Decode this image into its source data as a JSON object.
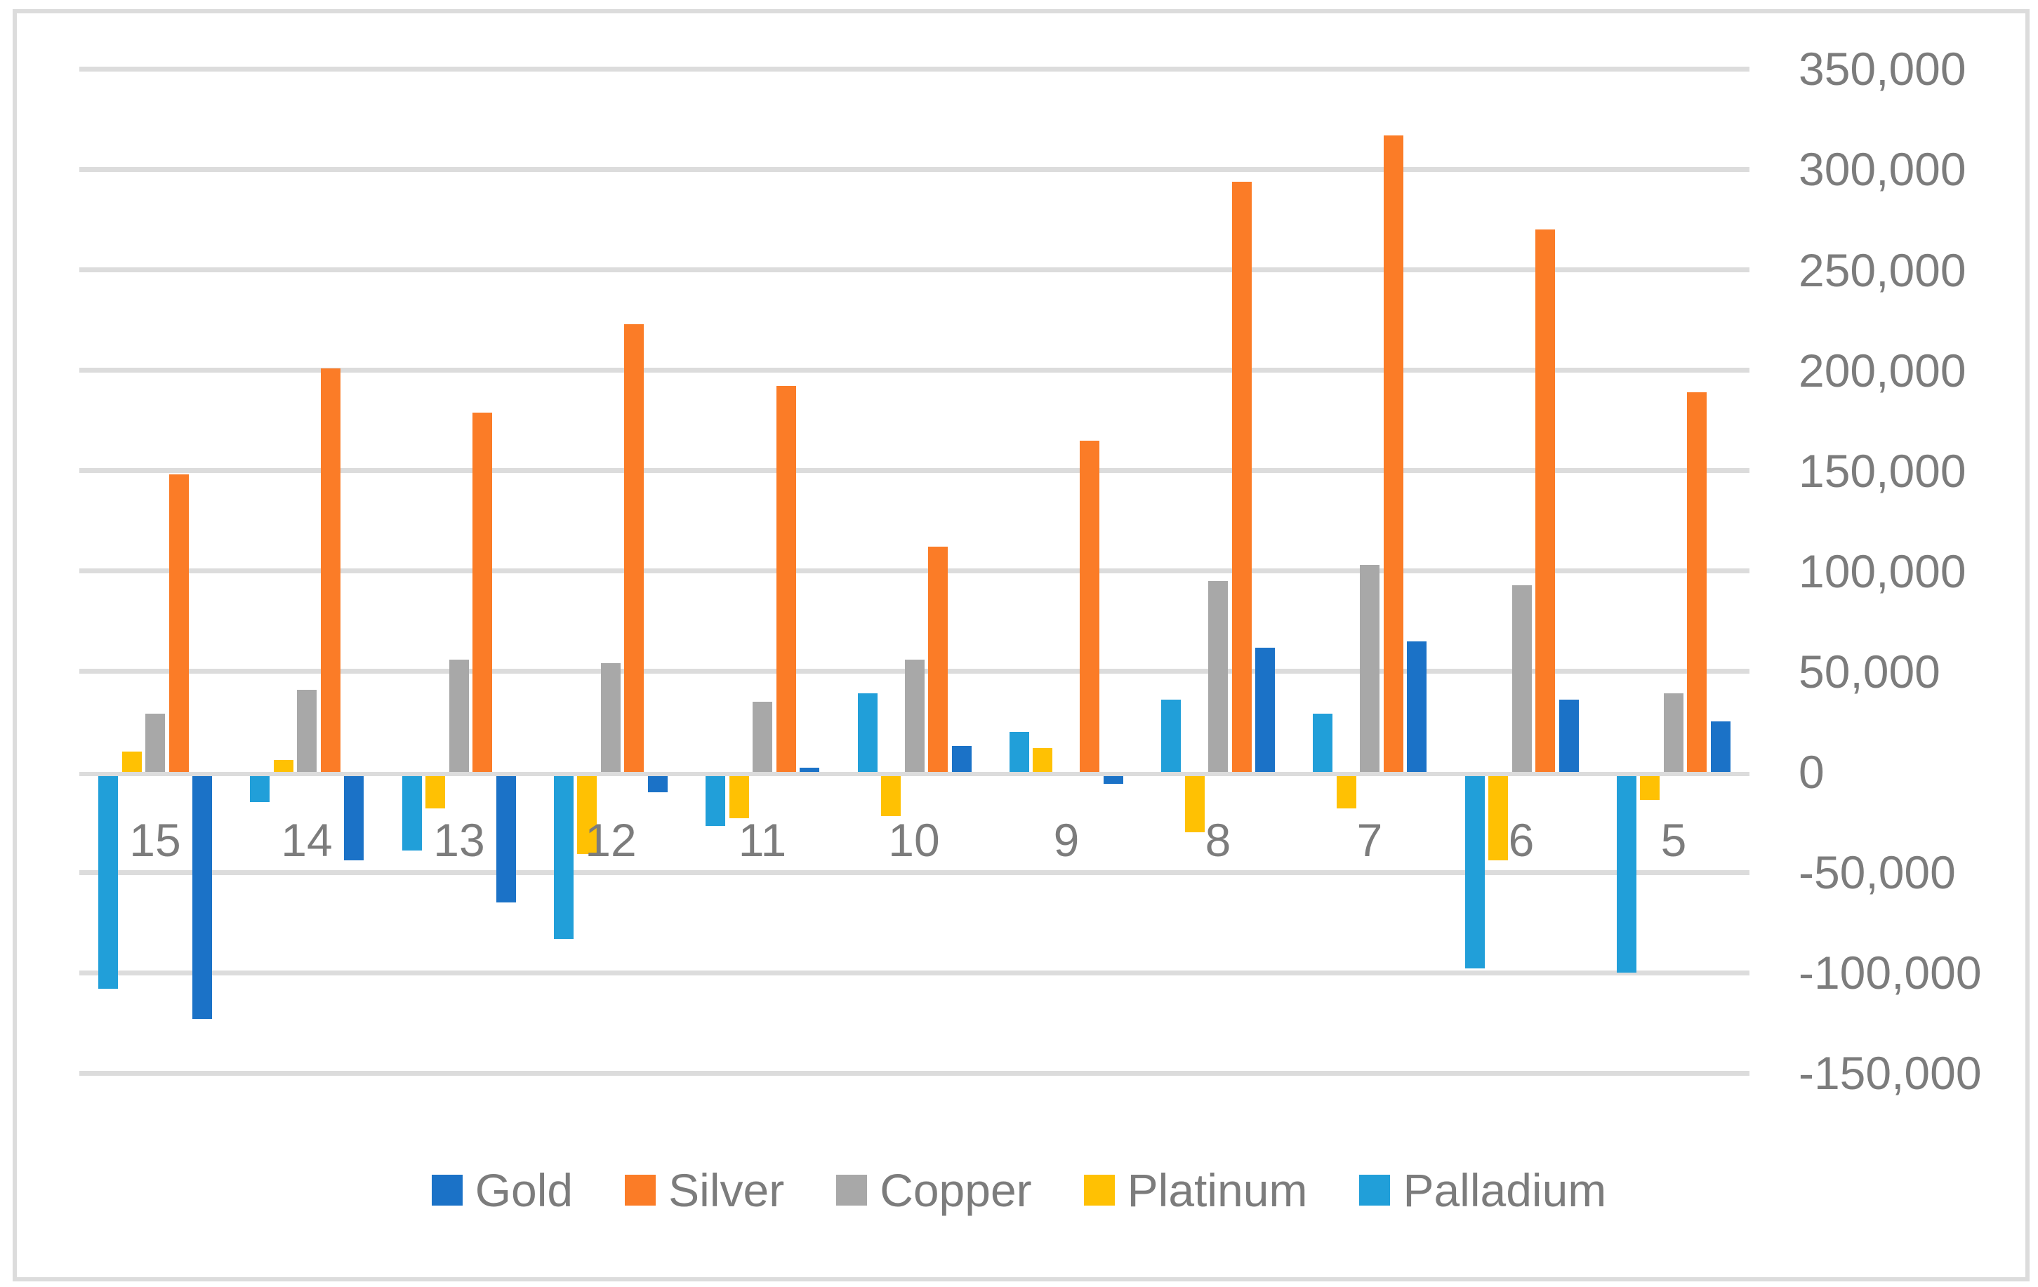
{
  "chart_data": {
    "type": "bar",
    "title": "",
    "categories": [
      "15",
      "14",
      "13",
      "12",
      "11",
      "10",
      "9",
      "8",
      "7",
      "6",
      "5"
    ],
    "series": [
      {
        "name": "Gold",
        "color": "#1B72C7",
        "values": [
          -123000,
          -44000,
          -65000,
          -10000,
          2000,
          13000,
          -6000,
          62000,
          65000,
          36000,
          25000
        ]
      },
      {
        "name": "Silver",
        "color": "#FB7C27",
        "values": [
          148000,
          201000,
          179000,
          223000,
          192000,
          112000,
          165000,
          294000,
          317000,
          270000,
          189000
        ]
      },
      {
        "name": "Copper",
        "color": "#A8A8A8",
        "values": [
          29000,
          41000,
          56000,
          54000,
          35000,
          56000,
          0,
          95000,
          103000,
          93000,
          39000
        ]
      },
      {
        "name": "Platinum",
        "color": "#FFC103",
        "values": [
          10000,
          6000,
          -18000,
          -41000,
          -23000,
          -22000,
          12000,
          -30000,
          -18000,
          -44000,
          -14000
        ]
      },
      {
        "name": "Palladium",
        "color": "#219FD9",
        "values": [
          -108000,
          -15000,
          -39000,
          -83000,
          -27000,
          39000,
          20000,
          36000,
          29000,
          -98000,
          -100000
        ]
      }
    ],
    "plot_order": [
      "Palladium",
      "Platinum",
      "Copper",
      "Silver",
      "Gold"
    ],
    "legend": {
      "position": "bottom",
      "entries": [
        "Gold",
        "Silver",
        "Copper",
        "Platinum",
        "Palladium"
      ]
    },
    "y_axis": {
      "side": "right",
      "min": -150000,
      "max": 350000,
      "step": 50000,
      "tick_labels": [
        "350,000",
        "300,000",
        "250,000",
        "200,000",
        "150,000",
        "100,000",
        "50,000",
        "0",
        "-50,000",
        "-100,000",
        "-150,000"
      ]
    },
    "x_axis": {
      "tick_labels": [
        "15",
        "14",
        "13",
        "12",
        "11",
        "10",
        "9",
        "8",
        "7",
        "6",
        "5"
      ]
    },
    "grid": true,
    "colors": {
      "gridline": "#DCDCDC",
      "axis_line": "#DCDCDC",
      "axis_text": "#7C7C7C",
      "border": "#DCDCDC",
      "background": "#FFFFFF"
    }
  }
}
